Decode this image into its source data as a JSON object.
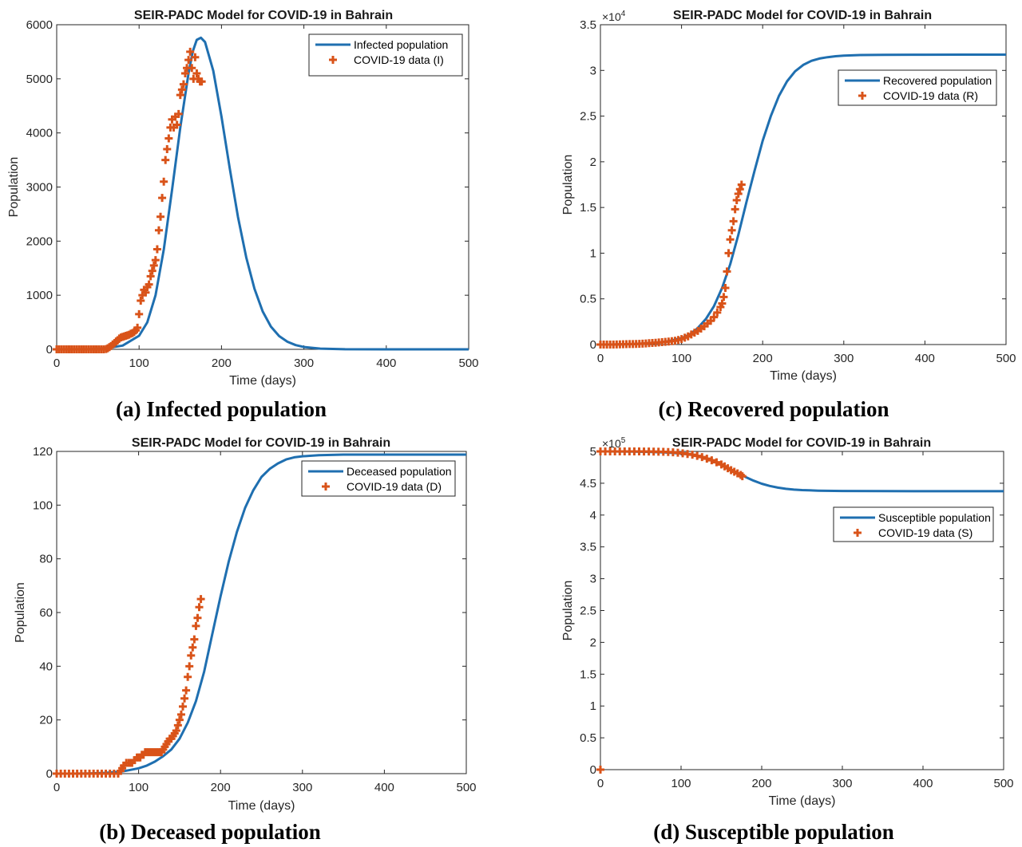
{
  "chart_data": [
    {
      "id": "a",
      "type": "line",
      "title": "SEIR-PADC Model for COVID-19 in Bahrain",
      "xlabel": "Time (days)",
      "ylabel": "Population",
      "xlim": [
        0,
        500
      ],
      "ylim": [
        0,
        6000
      ],
      "xticks": [
        0,
        100,
        200,
        300,
        400,
        500
      ],
      "yticks": [
        0,
        1000,
        2000,
        3000,
        4000,
        5000,
        6000
      ],
      "ytick_labels": [
        "0",
        "1000",
        "2000",
        "3000",
        "4000",
        "5000",
        "6000"
      ],
      "y_exponent": "",
      "legend_position": "top-right",
      "caption": "(a)  Infected population",
      "series": [
        {
          "name": "Infected population",
          "kind": "line",
          "color": "#1f6fb0",
          "x": [
            0,
            20,
            40,
            60,
            80,
            100,
            110,
            120,
            130,
            140,
            150,
            160,
            165,
            170,
            175,
            180,
            190,
            200,
            210,
            220,
            230,
            240,
            250,
            260,
            270,
            280,
            290,
            300,
            320,
            350,
            400,
            450,
            500
          ],
          "y": [
            0,
            0,
            5,
            20,
            70,
            250,
            500,
            1000,
            1850,
            2950,
            4100,
            5100,
            5500,
            5720,
            5760,
            5680,
            5150,
            4300,
            3350,
            2450,
            1700,
            1120,
            700,
            420,
            245,
            140,
            78,
            43,
            13,
            2,
            0,
            0,
            0
          ]
        },
        {
          "name": "COVID-19 data (I)",
          "kind": "marker",
          "color": "#d95319",
          "x": [
            0,
            3,
            6,
            9,
            12,
            15,
            18,
            21,
            24,
            27,
            30,
            33,
            36,
            39,
            42,
            45,
            48,
            51,
            54,
            57,
            60,
            62,
            64,
            66,
            68,
            70,
            72,
            74,
            76,
            78,
            80,
            82,
            84,
            86,
            88,
            90,
            92,
            94,
            96,
            98,
            100,
            102,
            104,
            106,
            108,
            110,
            112,
            114,
            116,
            118,
            120,
            122,
            124,
            126,
            128,
            130,
            132,
            134,
            136,
            138,
            140,
            142,
            144,
            146,
            148,
            150,
            152,
            154,
            156,
            158,
            160,
            162,
            164,
            166,
            168,
            170,
            172,
            174,
            176
          ],
          "y": [
            0,
            0,
            0,
            0,
            0,
            0,
            0,
            0,
            0,
            0,
            0,
            0,
            0,
            0,
            0,
            0,
            0,
            0,
            0,
            0,
            5,
            20,
            40,
            60,
            90,
            110,
            140,
            170,
            200,
            220,
            230,
            240,
            250,
            260,
            270,
            290,
            300,
            320,
            350,
            400,
            650,
            900,
            1000,
            1100,
            1050,
            1150,
            1200,
            1350,
            1450,
            1550,
            1650,
            1850,
            2200,
            2450,
            2800,
            3100,
            3500,
            3700,
            3900,
            4100,
            4250,
            4100,
            4300,
            4150,
            4350,
            4700,
            4800,
            4900,
            5100,
            5200,
            5350,
            5500,
            5200,
            5000,
            5400,
            5100,
            5000,
            4950,
            4950
          ]
        }
      ]
    },
    {
      "id": "c",
      "type": "line",
      "title": "SEIR-PADC Model for COVID-19 in Bahrain",
      "xlabel": "Time (days)",
      "ylabel": "Population",
      "xlim": [
        0,
        500
      ],
      "ylim": [
        0,
        35000
      ],
      "xticks": [
        0,
        100,
        200,
        300,
        400,
        500
      ],
      "yticks": [
        0,
        5000,
        10000,
        15000,
        20000,
        25000,
        30000,
        35000
      ],
      "ytick_labels": [
        "0",
        "0.5",
        "1",
        "1.5",
        "2",
        "2.5",
        "3",
        "3.5"
      ],
      "y_exponent": "×10^4",
      "legend_position": "top-right",
      "caption": "(c) Recovered population",
      "series": [
        {
          "name": "Recovered population",
          "kind": "line",
          "color": "#1f6fb0",
          "x": [
            0,
            20,
            40,
            60,
            80,
            100,
            110,
            120,
            130,
            140,
            150,
            160,
            170,
            180,
            190,
            200,
            210,
            220,
            230,
            240,
            250,
            260,
            270,
            280,
            290,
            300,
            320,
            350,
            400,
            450,
            500
          ],
          "y": [
            0,
            10,
            40,
            150,
            300,
            700,
            1100,
            1800,
            2800,
            4200,
            6200,
            8800,
            12000,
            15600,
            19000,
            22300,
            25000,
            27200,
            28800,
            29900,
            30600,
            31050,
            31300,
            31450,
            31550,
            31620,
            31680,
            31700,
            31720,
            31730,
            31730
          ]
        },
        {
          "name": "COVID-19 data (R)",
          "kind": "marker",
          "color": "#d95319",
          "x": [
            0,
            4,
            8,
            12,
            16,
            20,
            24,
            28,
            32,
            36,
            40,
            44,
            48,
            52,
            56,
            60,
            64,
            68,
            72,
            76,
            80,
            84,
            88,
            92,
            96,
            100,
            104,
            108,
            112,
            116,
            120,
            124,
            128,
            132,
            136,
            140,
            144,
            148,
            150,
            152,
            154,
            156,
            158,
            160,
            162,
            164,
            166,
            168,
            170,
            172,
            174
          ],
          "y": [
            0,
            0,
            0,
            0,
            0,
            10,
            20,
            30,
            40,
            50,
            60,
            70,
            80,
            100,
            120,
            150,
            170,
            200,
            230,
            260,
            300,
            330,
            370,
            420,
            500,
            600,
            750,
            900,
            1100,
            1300,
            1500,
            1750,
            2000,
            2300,
            2600,
            3000,
            3500,
            4100,
            4500,
            5200,
            6200,
            8000,
            10000,
            11500,
            12500,
            13500,
            14800,
            15800,
            16500,
            17000,
            17500
          ]
        }
      ]
    },
    {
      "id": "b",
      "type": "line",
      "title": "SEIR-PADC Model for COVID-19 in Bahrain",
      "xlabel": "Time (days)",
      "ylabel": "Population",
      "xlim": [
        0,
        500
      ],
      "ylim": [
        0,
        120
      ],
      "xticks": [
        0,
        100,
        200,
        300,
        400,
        500
      ],
      "yticks": [
        0,
        20,
        40,
        60,
        80,
        100,
        120
      ],
      "ytick_labels": [
        "0",
        "20",
        "40",
        "60",
        "80",
        "100",
        "120"
      ],
      "y_exponent": "",
      "legend_position": "top-right",
      "caption": "(b)  Deceased population",
      "series": [
        {
          "name": "Deceased population",
          "kind": "line",
          "color": "#1f6fb0",
          "x": [
            0,
            20,
            40,
            60,
            80,
            100,
            110,
            120,
            130,
            140,
            150,
            160,
            170,
            180,
            190,
            200,
            210,
            220,
            230,
            240,
            250,
            260,
            270,
            280,
            290,
            300,
            320,
            350,
            400,
            450,
            500
          ],
          "y": [
            0,
            0,
            0.1,
            0.3,
            0.8,
            2,
            3,
            4.5,
            6.5,
            9,
            13,
            19,
            27,
            38,
            52,
            66,
            79,
            90,
            99,
            105.5,
            110.5,
            113.5,
            115.5,
            117,
            117.8,
            118.2,
            118.6,
            118.8,
            118.8,
            118.8,
            118.8
          ]
        },
        {
          "name": "COVID-19 data (D)",
          "kind": "marker",
          "color": "#d95319",
          "x": [
            0,
            5,
            10,
            15,
            20,
            25,
            30,
            35,
            40,
            45,
            50,
            55,
            60,
            65,
            70,
            75,
            78,
            80,
            82,
            85,
            88,
            90,
            92,
            95,
            98,
            100,
            102,
            104,
            106,
            108,
            110,
            112,
            114,
            116,
            118,
            120,
            122,
            124,
            126,
            128,
            130,
            132,
            134,
            136,
            138,
            140,
            142,
            144,
            146,
            148,
            150,
            152,
            154,
            156,
            158,
            160,
            162,
            164,
            166,
            168,
            170,
            172,
            174,
            176
          ],
          "y": [
            0,
            0,
            0,
            0,
            0,
            0,
            0,
            0,
            0,
            0,
            0,
            0,
            0,
            0,
            0,
            0,
            1,
            2,
            3,
            4,
            4,
            4,
            4,
            5,
            6,
            6,
            6,
            7,
            7,
            8,
            8,
            8,
            8,
            8,
            8,
            8,
            8,
            8,
            8,
            8,
            9,
            10,
            11,
            12,
            13,
            13,
            14,
            15,
            16,
            18,
            20,
            22,
            25,
            28,
            31,
            36,
            40,
            44,
            47,
            50,
            55,
            58,
            62,
            65
          ]
        }
      ]
    },
    {
      "id": "d",
      "type": "line",
      "title": "SEIR-PADC Model for COVID-19 in Bahrain",
      "xlabel": "Time (days)",
      "ylabel": "Population",
      "xlim": [
        0,
        500
      ],
      "ylim": [
        0,
        500000
      ],
      "xticks": [
        0,
        100,
        200,
        300,
        400,
        500
      ],
      "yticks": [
        0,
        50000,
        100000,
        150000,
        200000,
        250000,
        300000,
        350000,
        400000,
        450000,
        500000
      ],
      "ytick_labels": [
        "0",
        "0.5",
        "1",
        "1.5",
        "2",
        "2.5",
        "3",
        "3.5",
        "4",
        "4.5",
        "5"
      ],
      "y_exponent": "×10^5",
      "legend_position": "top-right",
      "caption": "(d) Susceptible population",
      "series": [
        {
          "name": "Susceptible population",
          "kind": "line",
          "color": "#1f6fb0",
          "x": [
            0,
            20,
            40,
            60,
            80,
            100,
            110,
            120,
            130,
            140,
            150,
            160,
            170,
            180,
            190,
            200,
            210,
            220,
            230,
            240,
            250,
            270,
            300,
            350,
            400,
            450,
            500
          ],
          "y": [
            500000,
            499900,
            499700,
            499300,
            498500,
            496800,
            495300,
            493200,
            490000,
            485500,
            479700,
            473000,
            466300,
            459800,
            454000,
            449300,
            445700,
            443100,
            441200,
            440000,
            439200,
            438400,
            437900,
            437600,
            437500,
            437500,
            437500
          ]
        },
        {
          "name": "COVID-19 data (S)",
          "kind": "marker",
          "color": "#d95319",
          "x": [
            0,
            6,
            12,
            18,
            24,
            30,
            36,
            42,
            48,
            54,
            60,
            66,
            72,
            78,
            84,
            90,
            96,
            102,
            108,
            114,
            120,
            126,
            132,
            138,
            144,
            150,
            154,
            158,
            162,
            166,
            170,
            174,
            176
          ],
          "y": [
            500000,
            500000,
            500000,
            500000,
            500000,
            500000,
            500000,
            500000,
            500000,
            499900,
            499800,
            499700,
            499500,
            499300,
            499000,
            498600,
            498000,
            497000,
            496000,
            494800,
            493000,
            491000,
            488500,
            486000,
            483000,
            479500,
            476500,
            473500,
            470500,
            468000,
            465500,
            463000,
            461000
          ]
        }
      ]
    }
  ],
  "s0_marker": {
    "x": 0,
    "y": 0
  }
}
